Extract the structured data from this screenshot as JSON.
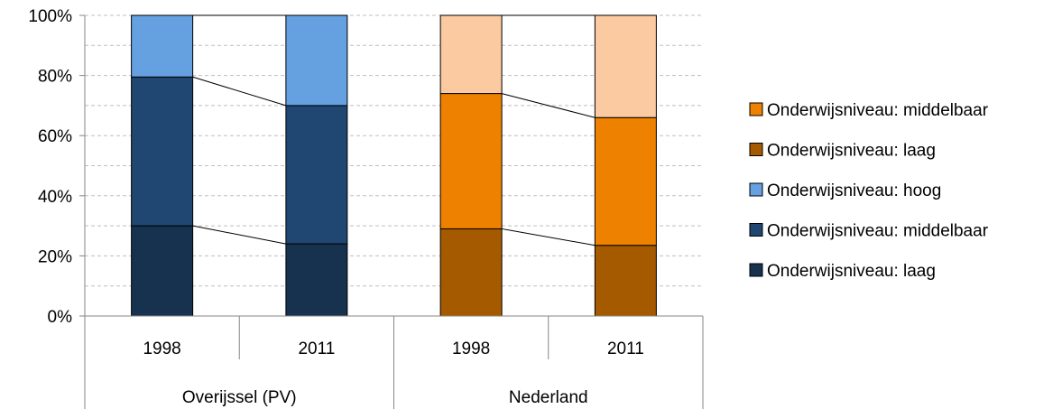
{
  "chart_data": {
    "type": "bar",
    "stacked": true,
    "percent": true,
    "groups": [
      {
        "label": "Overijssel (PV)",
        "bars": [
          {
            "label": "1998",
            "segments": [
              30,
              49.5,
              20.5
            ]
          },
          {
            "label": "2011",
            "segments": [
              24,
              46,
              30
            ]
          }
        ],
        "colors": [
          "#17324f",
          "#1f4771",
          "#65a1e0"
        ]
      },
      {
        "label": "Nederland",
        "bars": [
          {
            "label": "1998",
            "segments": [
              29,
              45,
              26
            ]
          },
          {
            "label": "2011",
            "segments": [
              23.5,
              42.5,
              34
            ]
          }
        ],
        "colors": [
          "#a65a00",
          "#ee8200",
          "#fbcaa1"
        ]
      }
    ],
    "yticks": [
      "0%",
      "20%",
      "40%",
      "60%",
      "80%",
      "100%"
    ],
    "ylim": [
      0,
      100
    ],
    "grid": true,
    "legend_position": "right",
    "legend": [
      {
        "name": "Onderwijsniveau: middelbaar",
        "color": "#ee8200"
      },
      {
        "name": "Onderwijsniveau: laag",
        "color": "#a65a00"
      },
      {
        "name": "Onderwijsniveau: hoog",
        "color": "#65a1e0"
      },
      {
        "name": "Onderwijsniveau: middelbaar",
        "color": "#1f4771"
      },
      {
        "name": "Onderwijsniveau: laag",
        "color": "#17324f"
      }
    ]
  }
}
